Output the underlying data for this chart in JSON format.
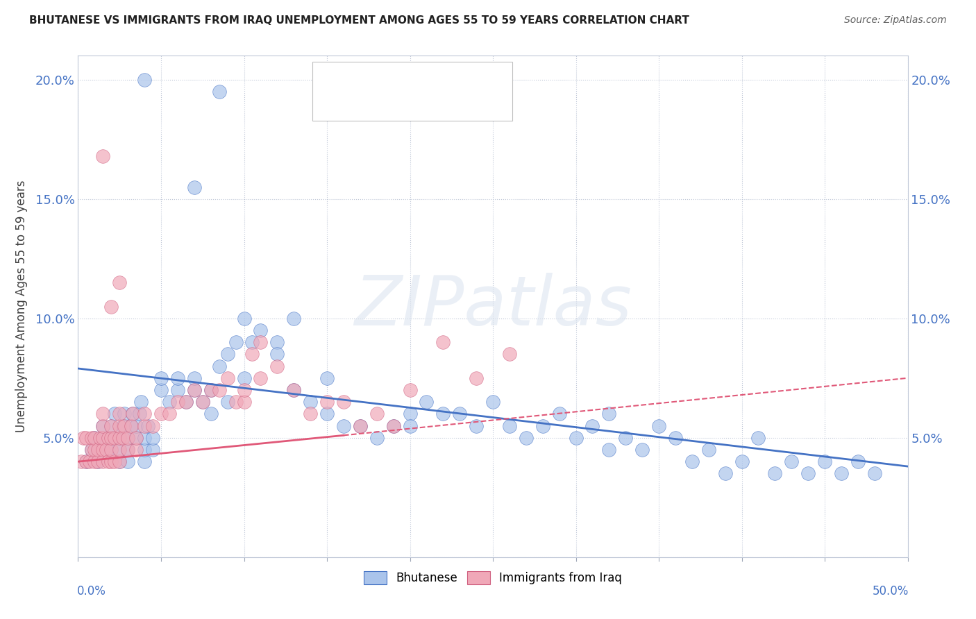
{
  "title": "BHUTANESE VS IMMIGRANTS FROM IRAQ UNEMPLOYMENT AMONG AGES 55 TO 59 YEARS CORRELATION CHART",
  "source": "Source: ZipAtlas.com",
  "ylabel": "Unemployment Among Ages 55 to 59 years",
  "xlim": [
    0.0,
    0.5
  ],
  "ylim": [
    0.0,
    0.21
  ],
  "ytick_values": [
    0.0,
    0.05,
    0.1,
    0.15,
    0.2
  ],
  "ytick_labels": [
    "",
    "5.0%",
    "10.0%",
    "15.0%",
    "20.0%"
  ],
  "color_bhutanese": "#aac4eb",
  "color_iraq": "#f0a8b8",
  "color_line_bhutanese": "#4472c4",
  "color_line_iraq": "#e05878",
  "watermark": "ZIPatlas",
  "b_line_x0": 0.0,
  "b_line_y0": 0.079,
  "b_line_x1": 0.5,
  "b_line_y1": 0.038,
  "i_line_x0": 0.0,
  "i_line_y0": 0.04,
  "i_line_x1": 0.5,
  "i_line_y1": 0.075,
  "i_line_solid_x1": 0.16,
  "i_line_solid_y1": 0.051
}
